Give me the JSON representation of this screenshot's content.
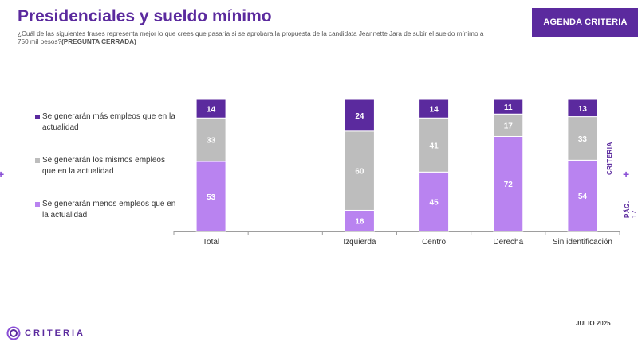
{
  "header": {
    "title": "Presidenciales y sueldo mínimo",
    "question": "¿Cuál de las siguientes frases representa mejor lo que crees que pasaría si se aprobara la propuesta de la candidata Jeannette Jara de subir el sueldo mínimo a 750 mil pesos?",
    "question_tag": "(PREGUNTA CERRADA)",
    "badge": "AGENDA CRITERIA"
  },
  "side": {
    "brand": "CRITERIA",
    "page": "PÁG. 17",
    "plus": "+"
  },
  "footer": {
    "logo_text": "CRITERIA",
    "date": "JULIO 2025"
  },
  "colors": {
    "purple_dark": "#5b2a9e",
    "gray": "#bdbdbd",
    "purple_light": "#b983f0"
  },
  "chart_data": {
    "type": "bar",
    "stacked": true,
    "categories": [
      "Total",
      "",
      "Izquierda",
      "Centro",
      "Derecha",
      "Sin identificación"
    ],
    "series": [
      {
        "name": "Se generarán menos empleos que en la actualidad",
        "color": "#b983f0",
        "values": [
          53,
          null,
          16,
          45,
          72,
          54
        ]
      },
      {
        "name": "Se generarán los mismos empleos que en la actualidad",
        "color": "#bdbdbd",
        "values": [
          33,
          null,
          60,
          41,
          17,
          33
        ]
      },
      {
        "name": "Se generarán más empleos que en la actualidad",
        "color": "#5b2a9e",
        "values": [
          14,
          null,
          24,
          14,
          11,
          13
        ]
      }
    ],
    "ylim": [
      0,
      100
    ],
    "grid": false,
    "legend": "left"
  }
}
